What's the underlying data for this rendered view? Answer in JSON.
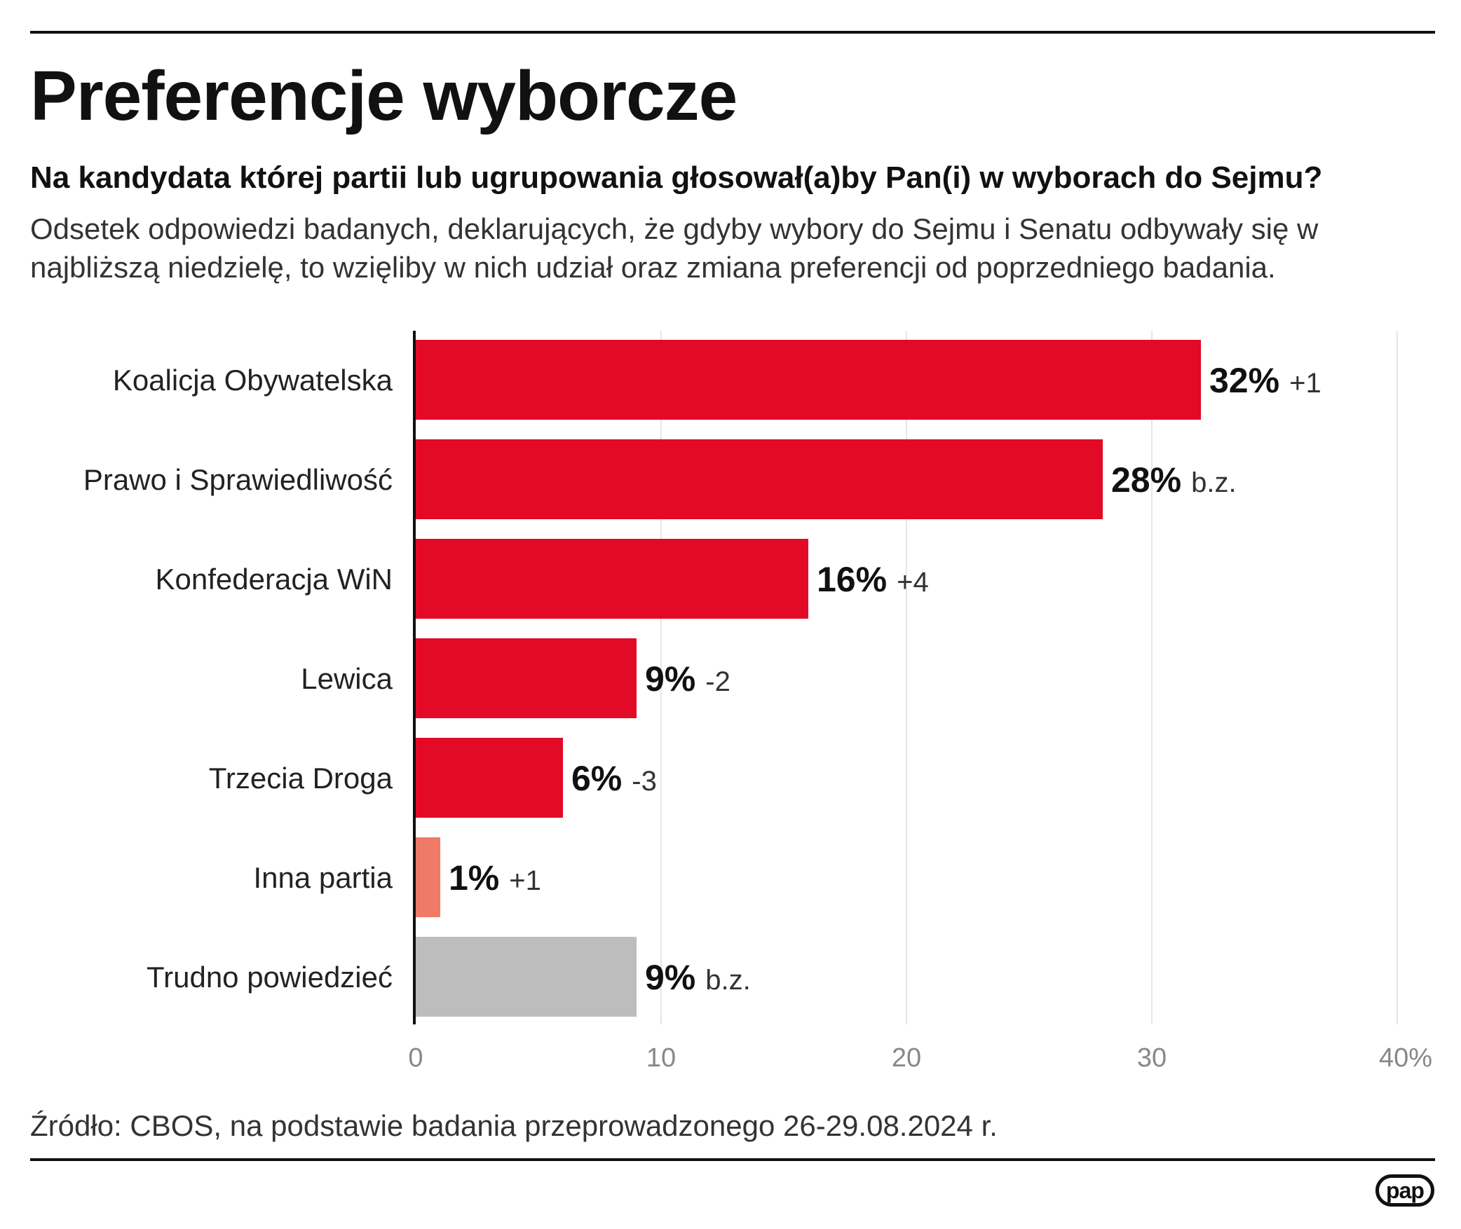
{
  "title": "Preferencje wyborcze",
  "subtitle": "Na kandydata której partii lub ugrupowania głosował(a)by Pan(i) w wyborach do Sejmu?",
  "description": "Odsetek odpowiedzi badanych, deklarujących, że gdyby wybory do Sejmu i Senatu odbywały się w najbliższą niedzielę, to wzięliby w nich udział oraz zmiana preferencji od poprzedniego badania.",
  "source": "Źródło: CBOS, na podstawie badania przeprowadzonego 26-29.08.2024 r.",
  "logo_text": "pap",
  "colors": {
    "main": "#e30a27",
    "other": "#f07a68",
    "undecided": "#bdbdbd"
  },
  "chart_data": {
    "type": "bar",
    "orientation": "horizontal",
    "categories": [
      "Koalicja Obywatelska",
      "Prawo i Sprawiedliwość",
      "Konfederacja WiN",
      "Lewica",
      "Trzecia Droga",
      "Inna partia",
      "Trudno powiedzieć"
    ],
    "values": [
      32,
      28,
      16,
      9,
      6,
      1,
      9
    ],
    "value_labels": [
      "32%",
      "28%",
      "16%",
      "9%",
      "6%",
      "1%",
      "9%"
    ],
    "changes": [
      "+1",
      "b.z.",
      "+4",
      "-2",
      "-3",
      "+1",
      "b.z."
    ],
    "bar_colors": [
      "#e30a27",
      "#e30a27",
      "#e30a27",
      "#e30a27",
      "#e30a27",
      "#f07a68",
      "#bdbdbd"
    ],
    "xlim": [
      0,
      40
    ],
    "x_ticks": [
      "0",
      "10",
      "20",
      "30",
      "40%"
    ],
    "grid": true,
    "legend": "none"
  }
}
